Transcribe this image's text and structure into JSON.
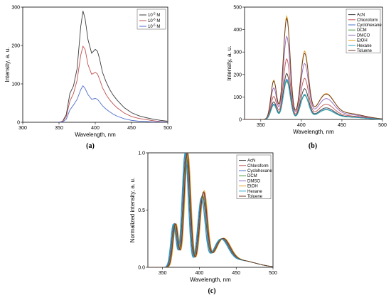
{
  "chart_data": [
    {
      "id": "a",
      "type": "line",
      "panel_label": "(a)",
      "xlabel": "Wavelength, nm",
      "ylabel": "Intensity, a. u.",
      "xlim": [
        300,
        500
      ],
      "ylim": [
        0,
        300
      ],
      "xticks": [
        300,
        350,
        400,
        450,
        500
      ],
      "yticks": [
        0,
        100,
        200,
        300
      ],
      "legend_position": "top-right",
      "series": [
        {
          "legend_base": "10",
          "legend_exp": "-5",
          "legend_unit": "M",
          "color": "#3c3c3c",
          "x": [
            350,
            355,
            360,
            365,
            370,
            375,
            380,
            383,
            386,
            390,
            395,
            400,
            403,
            406,
            410,
            415,
            420,
            425,
            430,
            440,
            450,
            460,
            470,
            480,
            490,
            500
          ],
          "y": [
            0,
            3,
            20,
            75,
            95,
            140,
            250,
            290,
            270,
            215,
            180,
            190,
            185,
            165,
            130,
            105,
            85,
            70,
            58,
            38,
            25,
            17,
            12,
            8,
            5,
            3
          ]
        },
        {
          "legend_base": "10",
          "legend_exp": "-6",
          "legend_unit": "M",
          "color": "#c0504d",
          "x": [
            350,
            355,
            360,
            365,
            370,
            375,
            380,
            383,
            386,
            390,
            395,
            400,
            403,
            406,
            410,
            415,
            420,
            425,
            430,
            440,
            450,
            460,
            470,
            480,
            490,
            500
          ],
          "y": [
            0,
            2,
            15,
            55,
            75,
            110,
            175,
            198,
            190,
            150,
            125,
            130,
            126,
            112,
            90,
            72,
            58,
            47,
            38,
            24,
            15,
            10,
            7,
            4,
            2,
            1
          ]
        },
        {
          "legend_base": "10",
          "legend_exp": "-5",
          "legend_unit": "M",
          "color": "#4f6fd0",
          "x": [
            350,
            355,
            360,
            365,
            370,
            375,
            380,
            383,
            386,
            390,
            395,
            400,
            403,
            406,
            410,
            415,
            420,
            425,
            430,
            440,
            450,
            460,
            470,
            480,
            490,
            500
          ],
          "y": [
            0,
            1,
            8,
            32,
            45,
            60,
            85,
            95,
            88,
            72,
            60,
            62,
            60,
            53,
            43,
            34,
            27,
            21,
            16,
            9,
            5,
            3,
            2,
            1,
            1,
            0
          ]
        }
      ]
    },
    {
      "id": "b",
      "type": "line",
      "panel_label": "(b)",
      "xlabel": "Wavelength, nm",
      "ylabel": "Intensity, a. u.",
      "xlim": [
        330,
        500
      ],
      "ylim": [
        0,
        500
      ],
      "xticks": [
        350,
        400,
        450,
        500
      ],
      "yticks": [
        0,
        100,
        200,
        300,
        400,
        500
      ],
      "legend_position": "top-right",
      "series": [
        {
          "name": "AcN",
          "color": "#333333",
          "peak": 205,
          "second": 135
        },
        {
          "name": "Chloroform",
          "color": "#c0504d",
          "peak": 270,
          "second": 180
        },
        {
          "name": "Cyclohexane",
          "color": "#4f6fd0",
          "peak": 180,
          "second": 110
        },
        {
          "name": "DCM",
          "color": "#3f9a3f",
          "peak": 170,
          "second": 105
        },
        {
          "name": "DMCO",
          "color": "#9467bd",
          "peak": 370,
          "second": 245
        },
        {
          "name": "EtOH",
          "color": "#e0a020",
          "peak": 460,
          "second": 300
        },
        {
          "name": "Hexane",
          "color": "#29a7c9",
          "peak": 175,
          "second": 108
        },
        {
          "name": "Toluene",
          "color": "#6b3a1f",
          "peak": 450,
          "second": 290
        }
      ]
    },
    {
      "id": "c",
      "type": "line",
      "panel_label": "(c)",
      "xlabel": "Wavelength, nm",
      "ylabel": "Normalized intensity, a. u.",
      "xlim": [
        330,
        500
      ],
      "ylim": [
        0,
        1.0
      ],
      "xticks": [
        350,
        400,
        450,
        500
      ],
      "yticks": [
        "0.0",
        "0.5",
        "1.0"
      ],
      "legend_position": "top-right",
      "series": [
        {
          "name": "AcN",
          "color": "#333333",
          "shift": 0,
          "second": 0.62
        },
        {
          "name": "Chloroform",
          "color": "#c0504d",
          "shift": 2,
          "second": 0.65
        },
        {
          "name": "Cyclohexane",
          "color": "#4f6fd0",
          "shift": -1,
          "second": 0.6
        },
        {
          "name": "DCM",
          "color": "#3f9a3f",
          "shift": 0.5,
          "second": 0.62
        },
        {
          "name": "DMSO",
          "color": "#9467bd",
          "shift": 1,
          "second": 0.64
        },
        {
          "name": "EtOH",
          "color": "#e0a020",
          "shift": 2.5,
          "second": 0.66
        },
        {
          "name": "Hexane",
          "color": "#29a7c9",
          "shift": -1.5,
          "second": 0.6
        },
        {
          "name": "Toluene",
          "color": "#6b3a1f",
          "shift": 1.5,
          "second": 0.65
        }
      ]
    }
  ]
}
